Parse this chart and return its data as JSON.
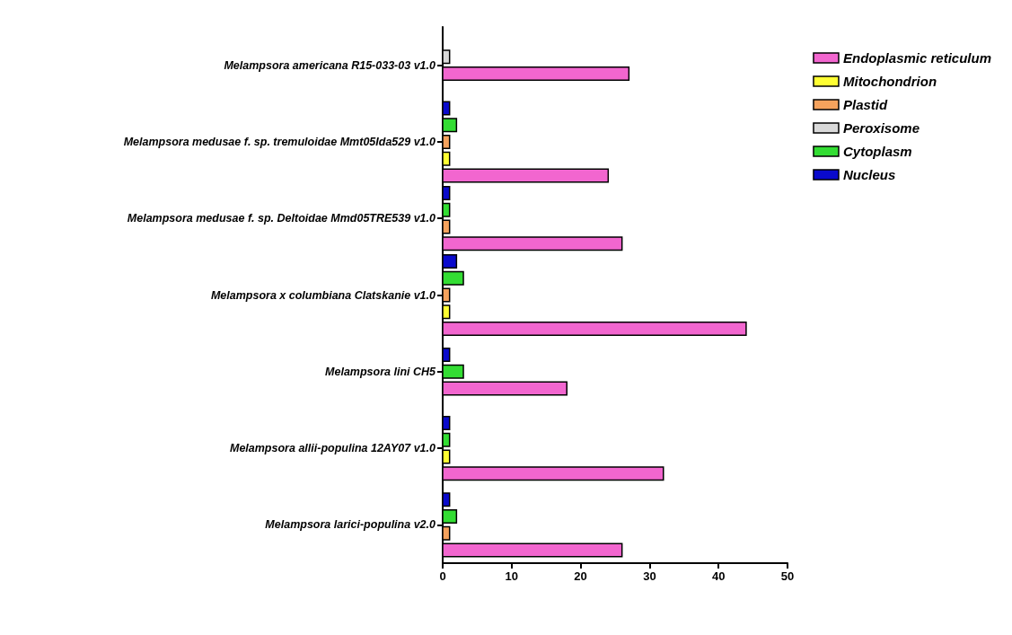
{
  "chart_data": {
    "type": "bar",
    "orientation": "horizontal",
    "categories": [
      "Melampsora americana R15-033-03 v1.0",
      "Melampsora medusae f. sp. tremuloidae Mmt05Ida529 v1.0",
      "Melampsora medusae f. sp. Deltoidae Mmd05TRE539 v1.0",
      "Melampsora x columbiana Clatskanie v1.0",
      "Melampsora lini CH5",
      "Melampsora allii-populina 12AY07 v1.0",
      "Melampsora larici-populina v2.0"
    ],
    "series": [
      {
        "name": "Endoplasmic reticulum",
        "color": "#f266cf",
        "values": [
          27,
          24,
          26,
          44,
          18,
          32,
          26
        ]
      },
      {
        "name": "Mitochondrion",
        "color": "#ffff33",
        "values": [
          null,
          1,
          null,
          1,
          null,
          1,
          null
        ]
      },
      {
        "name": "Plastid",
        "color": "#f5a25d",
        "values": [
          null,
          1,
          1,
          1,
          null,
          null,
          1
        ]
      },
      {
        "name": "Peroxisome",
        "color": "#d9d9d9",
        "values": [
          1,
          null,
          null,
          null,
          null,
          null,
          null
        ]
      },
      {
        "name": "Cytoplasm",
        "color": "#33dd33",
        "values": [
          null,
          2,
          1,
          3,
          3,
          1,
          2
        ]
      },
      {
        "name": "Nucleus",
        "color": "#0a0acc",
        "values": [
          null,
          1,
          1,
          2,
          1,
          1,
          1
        ]
      }
    ],
    "xlim": [
      0,
      50
    ],
    "xticks": [
      0,
      10,
      20,
      30,
      40,
      50
    ],
    "grid": false,
    "legend": "top right"
  }
}
